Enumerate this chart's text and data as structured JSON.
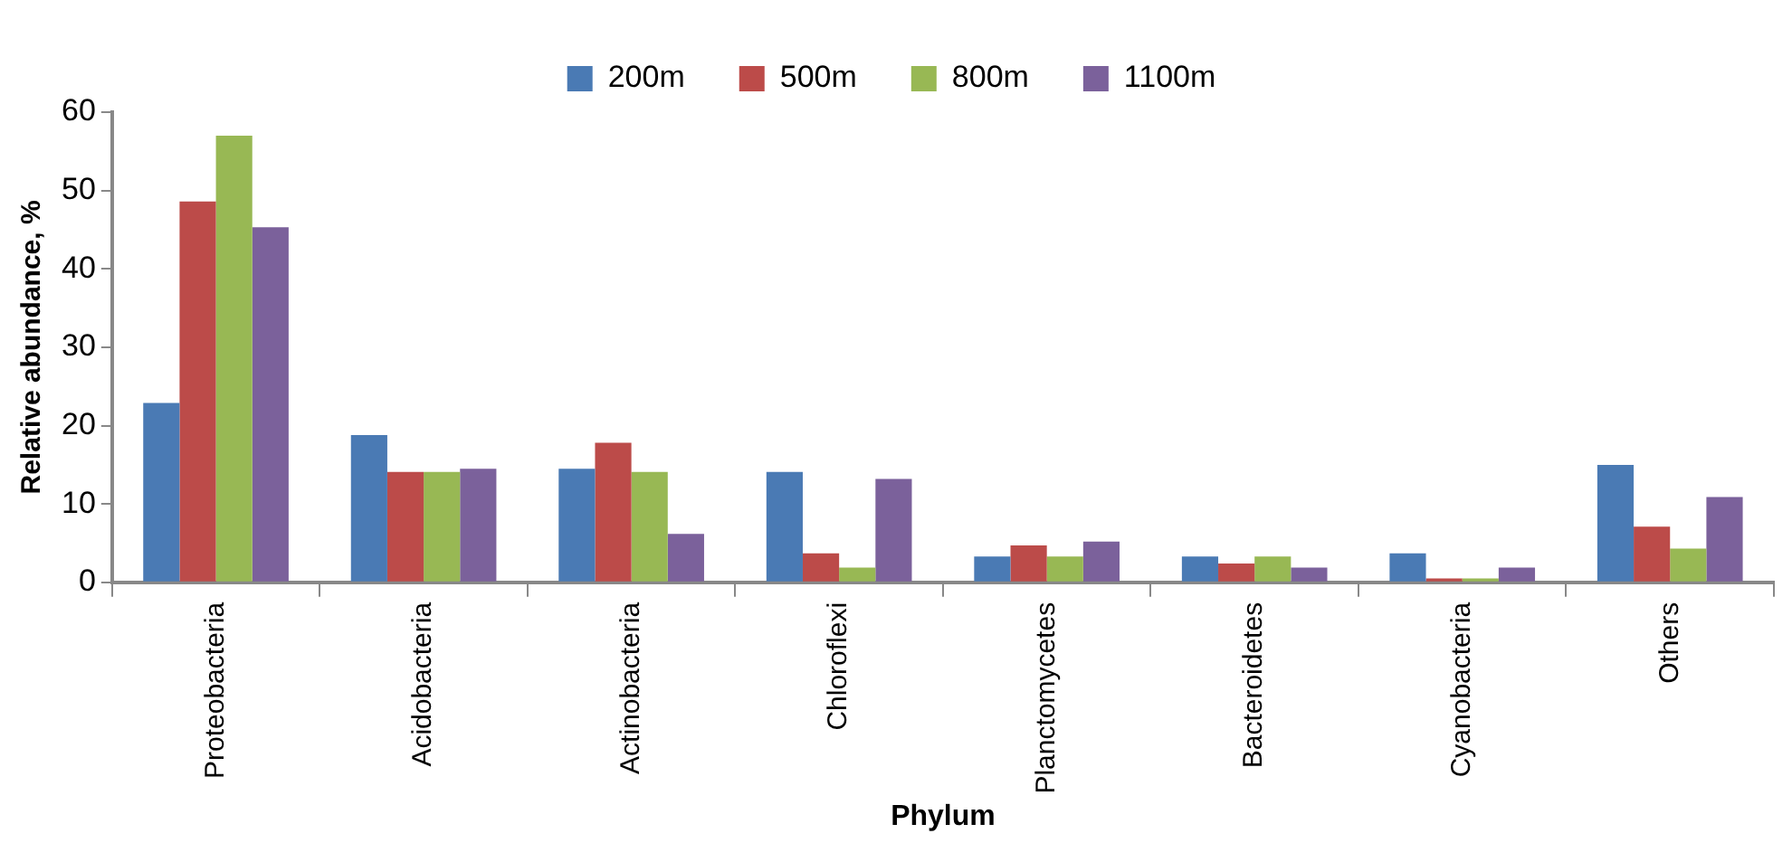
{
  "chart_data": {
    "type": "bar",
    "xlabel": "Phylum",
    "ylabel": "Relative abundance, %",
    "categories": [
      "Proteobacteria",
      "Acidobacteria",
      "Actinobacteria",
      "Chloroflexi",
      "Planctomycetes",
      "Bacteroidetes",
      "Cyanobacteria",
      "Others"
    ],
    "series": [
      {
        "name": "200m",
        "color": "#4a7ab4",
        "values": [
          22.9,
          18.8,
          14.5,
          14.1,
          3.3,
          3.3,
          3.7,
          15.0
        ]
      },
      {
        "name": "500m",
        "color": "#bc4b49",
        "values": [
          48.6,
          14.1,
          17.8,
          3.7,
          4.7,
          2.4,
          0.5,
          7.1
        ]
      },
      {
        "name": "800m",
        "color": "#98b854",
        "values": [
          57.0,
          14.1,
          14.1,
          1.9,
          3.3,
          3.3,
          0.5,
          4.3
        ]
      },
      {
        "name": "1100m",
        "color": "#7b619b",
        "values": [
          45.3,
          14.5,
          6.2,
          13.2,
          5.2,
          1.9,
          1.9,
          10.9
        ]
      }
    ],
    "ylim": [
      0,
      60
    ],
    "yticks": [
      0,
      10,
      20,
      30,
      40,
      50,
      60
    ],
    "grid": false,
    "legend": "top"
  }
}
